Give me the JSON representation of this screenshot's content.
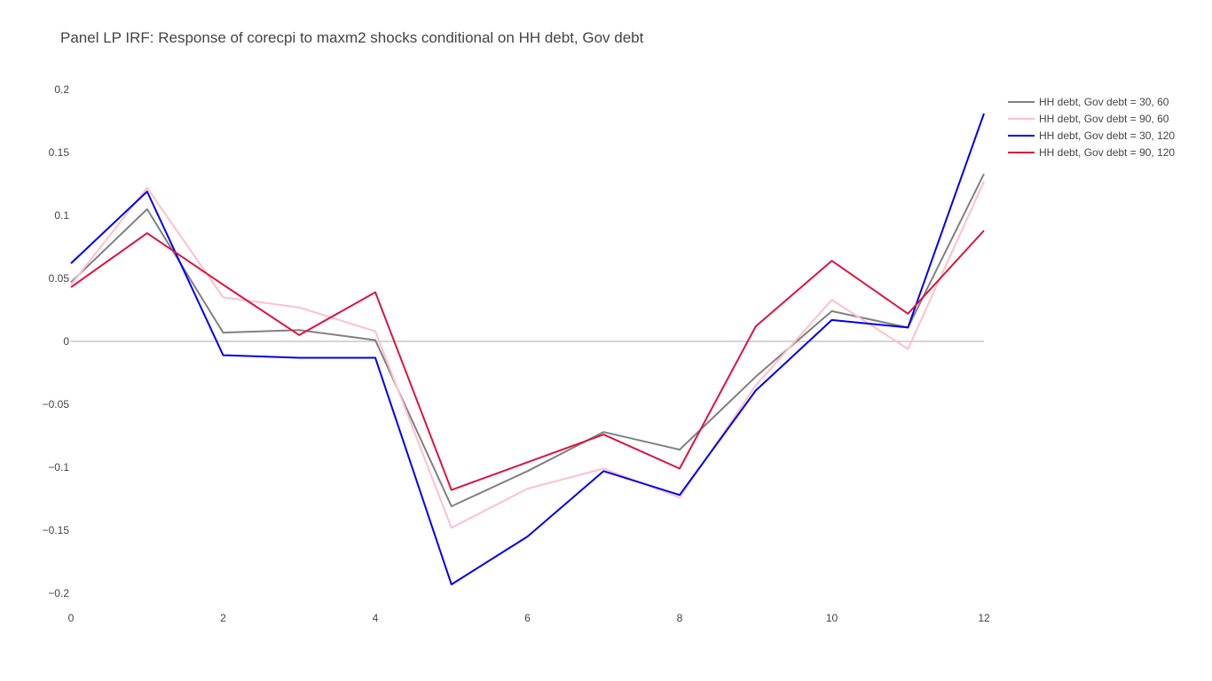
{
  "chart_data": {
    "type": "line",
    "title": "Panel LP IRF: Response of corecpi to maxm2 shocks conditional on HH debt, Gov debt",
    "xlabel": "",
    "ylabel": "",
    "x": [
      0,
      1,
      2,
      3,
      4,
      5,
      6,
      7,
      8,
      9,
      10,
      11,
      12
    ],
    "xlim": [
      0,
      12
    ],
    "ylim": [
      -0.21,
      0.2
    ],
    "x_ticks": [
      0,
      2,
      4,
      6,
      8,
      10,
      12
    ],
    "y_ticks": [
      0.2,
      0.15,
      0.1,
      0.05,
      0,
      -0.05,
      -0.1,
      -0.15,
      -0.2
    ],
    "y_tick_labels": [
      "0.2",
      "0.15",
      "0.1",
      "0.05",
      "0",
      "−0.05",
      "−0.1",
      "−0.15",
      "−0.2"
    ],
    "grid": false,
    "zero_line": true,
    "legend_position": "top-right",
    "series": [
      {
        "name": "HH debt, Gov debt = 30, 60",
        "color": "#808080",
        "values": [
          0.047,
          0.105,
          0.007,
          0.009,
          0.001,
          -0.131,
          -0.103,
          -0.072,
          -0.086,
          -0.028,
          0.024,
          0.011,
          0.133
        ]
      },
      {
        "name": "HH debt, Gov debt = 90, 60",
        "color": "#ffc0cb",
        "values": [
          0.045,
          0.122,
          0.035,
          0.027,
          0.008,
          -0.148,
          -0.117,
          -0.101,
          -0.124,
          -0.035,
          0.033,
          -0.006,
          0.127
        ]
      },
      {
        "name": "HH debt, Gov debt = 30, 120",
        "color": "#0000ee",
        "values": [
          0.062,
          0.119,
          -0.011,
          -0.013,
          -0.013,
          -0.193,
          -0.155,
          -0.103,
          -0.122,
          -0.039,
          0.017,
          0.011,
          0.181
        ]
      },
      {
        "name": "HH debt, Gov debt = 90, 120",
        "color": "#dc143c",
        "values": [
          0.043,
          0.086,
          0.045,
          0.005,
          0.039,
          -0.118,
          -0.096,
          -0.074,
          -0.101,
          0.012,
          0.064,
          0.022,
          0.088
        ]
      }
    ]
  }
}
